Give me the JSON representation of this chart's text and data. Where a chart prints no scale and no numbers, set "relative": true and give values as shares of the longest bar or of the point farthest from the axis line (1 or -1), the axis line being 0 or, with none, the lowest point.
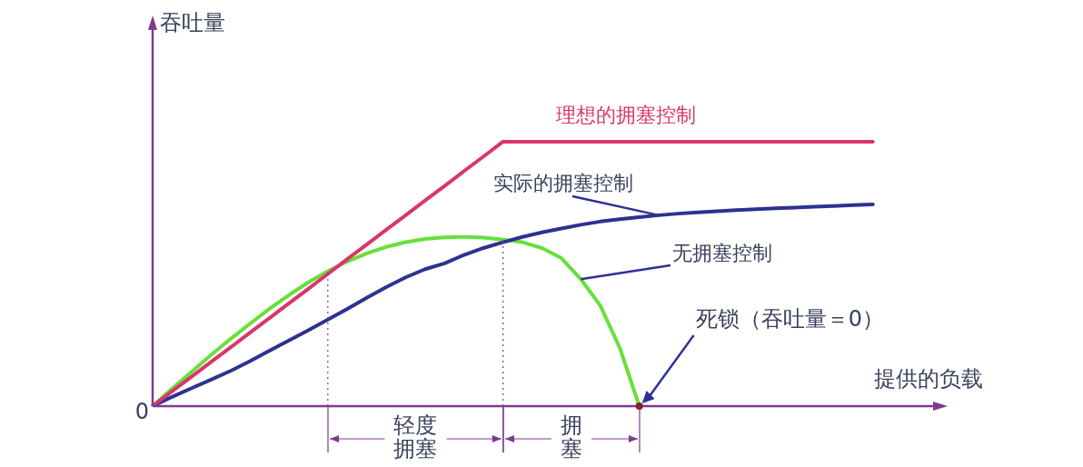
{
  "chart_data": {
    "type": "line",
    "relative": true,
    "xlabel": "提供的负载",
    "ylabel": "吞吐量",
    "tick_labels": false,
    "legend": false,
    "marker": "none",
    "categories": [
      null,
      null,
      null,
      null,
      null,
      null,
      null,
      null,
      null,
      null,
      null,
      null,
      null,
      null,
      null,
      null,
      null,
      null,
      null,
      null,
      null,
      null,
      null,
      null,
      null,
      null,
      null,
      null,
      null,
      null,
      null,
      null,
      null,
      null,
      null,
      null,
      null,
      null,
      null,
      null,
      null
    ],
    "series": [
      {
        "name": "理想的拥塞控制",
        "color": "#d9366a",
        "values": [
          0,
          0.056,
          0.111,
          0.167,
          0.222,
          0.278,
          0.333,
          0.389,
          0.444,
          0.5,
          0.556,
          0.611,
          0.667,
          0.722,
          0.778,
          0.833,
          0.889,
          0.944,
          1,
          1,
          1,
          1,
          1,
          1,
          1,
          1,
          1,
          1,
          1,
          1,
          1,
          1,
          1,
          1,
          1,
          1,
          1,
          1,
          null,
          null,
          null
        ]
      },
      {
        "name": "实际的拥塞控制",
        "color": "#2e3192",
        "values": [
          0,
          0.035,
          0.068,
          0.1,
          0.133,
          0.17,
          0.21,
          0.248,
          0.287,
          0.327,
          0.368,
          0.41,
          0.45,
          0.487,
          0.518,
          0.54,
          0.572,
          0.598,
          0.62,
          0.64,
          0.657,
          0.672,
          0.686,
          0.698,
          0.707,
          0.715,
          0.722,
          0.728,
          0.733,
          0.737,
          0.741,
          0.745,
          0.748,
          0.751,
          0.754,
          0.757,
          0.76,
          0.763,
          null,
          null,
          null
        ]
      },
      {
        "name": "无拥塞控制",
        "color": "#66e03a",
        "values": [
          0,
          0.066,
          0.13,
          0.193,
          0.254,
          0.312,
          0.368,
          0.42,
          0.468,
          0.51,
          0.547,
          0.578,
          0.602,
          0.62,
          0.632,
          0.638,
          0.64,
          0.637,
          0.63,
          0.62,
          0.598,
          0.56,
          0.48,
          0.38,
          0.22,
          0,
          null,
          null,
          null,
          null,
          null,
          null,
          null,
          null,
          null,
          null,
          null,
          null,
          null,
          null,
          null
        ]
      }
    ],
    "annotations": [
      "0",
      "死锁（吞吐量＝0）",
      "轻度拥塞",
      "拥塞"
    ]
  }
}
